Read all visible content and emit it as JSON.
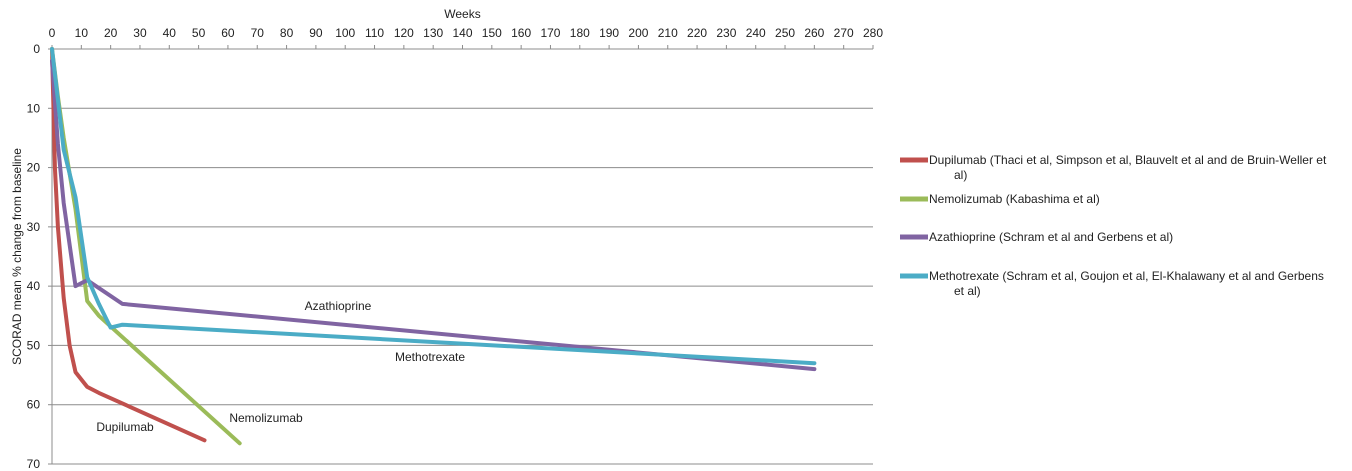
{
  "chart_data": {
    "type": "line",
    "xlabel": "Weeks",
    "ylabel": "SCORAD mean % change from baseline",
    "xlim": [
      0,
      280
    ],
    "ylim": [
      0,
      70
    ],
    "x_ticks": [
      0,
      10,
      20,
      30,
      40,
      50,
      60,
      70,
      80,
      90,
      100,
      110,
      120,
      130,
      140,
      150,
      160,
      170,
      180,
      190,
      200,
      210,
      220,
      230,
      240,
      250,
      260,
      270,
      280
    ],
    "y_ticks": [
      0,
      10,
      20,
      30,
      40,
      50,
      60,
      70
    ],
    "y_inverted": true,
    "x_axis_position": "top",
    "grid": "horizontal",
    "legend_position": "right",
    "series": [
      {
        "name": "Dupilumab (Thaci et al, Simpson et al, Blauvelt et al and de Bruin-Weller et al)",
        "color": "#c0504d",
        "annotation": "Dupilumab",
        "points": [
          [
            0,
            0
          ],
          [
            1,
            20
          ],
          [
            2,
            30
          ],
          [
            4,
            42
          ],
          [
            6,
            50
          ],
          [
            8,
            54.5
          ],
          [
            12,
            57
          ],
          [
            16,
            58
          ],
          [
            52,
            66
          ]
        ]
      },
      {
        "name": "Nemolizumab (Kabashima et al)",
        "color": "#9bbb59",
        "annotation": "Nemolizumab",
        "points": [
          [
            0,
            0
          ],
          [
            2,
            8
          ],
          [
            4,
            15
          ],
          [
            8,
            27
          ],
          [
            12,
            42.5
          ],
          [
            16,
            45
          ],
          [
            64,
            66.5
          ]
        ]
      },
      {
        "name": "Azathioprine (Schram et al and Gerbens et al)",
        "color": "#8064a2",
        "annotation": "Azathioprine",
        "points": [
          [
            0,
            2
          ],
          [
            2,
            16
          ],
          [
            4,
            26
          ],
          [
            8,
            40
          ],
          [
            12,
            39
          ],
          [
            24,
            43
          ],
          [
            260,
            54
          ]
        ]
      },
      {
        "name": "Methotrexate (Schram et al, Goujon et al, El-Khalawany et al and Gerbens et al)",
        "color": "#4bacc6",
        "annotation": "Methotrexate",
        "points": [
          [
            0,
            0
          ],
          [
            4,
            17
          ],
          [
            8,
            25
          ],
          [
            12,
            38.5
          ],
          [
            16,
            43
          ],
          [
            20,
            47
          ],
          [
            24,
            46.5
          ],
          [
            260,
            53
          ]
        ]
      }
    ]
  }
}
